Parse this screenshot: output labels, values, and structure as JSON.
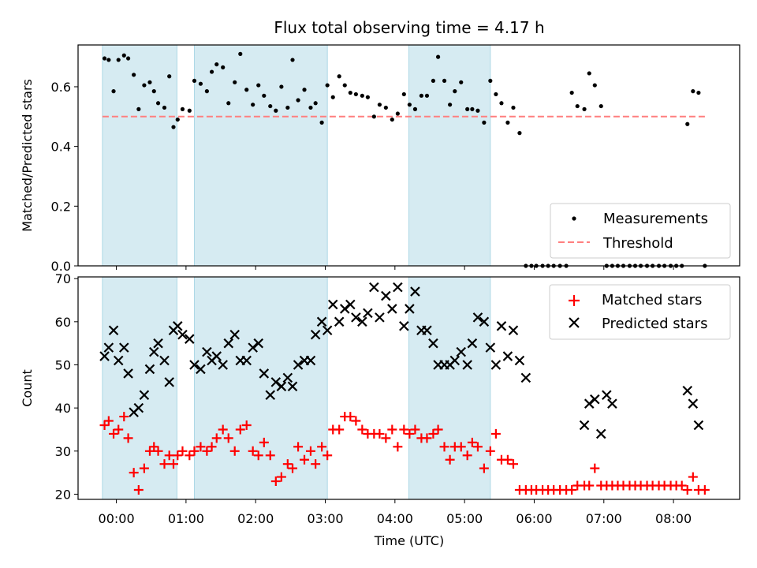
{
  "chart_data": [
    {
      "type": "scatter",
      "title": "Flux total observing time = 4.17 h",
      "xlabel": "",
      "ylabel": "Matched/Predicted stars",
      "xlim": [
        -0.55,
        8.95
      ],
      "ylim": [
        0.0,
        0.74
      ],
      "yticks": [
        "0.0",
        "0.2",
        "0.4",
        "0.6"
      ],
      "ytick_values": [
        0.0,
        0.2,
        0.4,
        0.6
      ],
      "grid": false,
      "legend_position": "lower-right",
      "legend": [
        {
          "label": "Measurements"
        },
        {
          "label": "Threshold"
        }
      ],
      "threshold": {
        "value": 0.5,
        "x_range": [
          -0.2,
          8.48
        ],
        "color": "#ff7f7f"
      },
      "shaded_spans": [
        [
          -0.2,
          0.87
        ],
        [
          1.12,
          3.03
        ],
        [
          4.2,
          5.37
        ]
      ],
      "shade_color": "#add8e6",
      "series": [
        {
          "name": "Measurements",
          "color": "#000000",
          "marker": "dot",
          "x": [
            -0.17,
            -0.11,
            -0.04,
            0.03,
            0.11,
            0.17,
            0.25,
            0.32,
            0.4,
            0.48,
            0.54,
            0.6,
            0.69,
            0.76,
            0.82,
            0.88,
            0.95,
            1.05,
            1.12,
            1.21,
            1.3,
            1.37,
            1.44,
            1.53,
            1.61,
            1.7,
            1.78,
            1.87,
            1.96,
            2.04,
            2.12,
            2.21,
            2.29,
            2.37,
            2.46,
            2.53,
            2.61,
            2.7,
            2.79,
            2.86,
            2.95,
            3.03,
            3.11,
            3.2,
            3.28,
            3.36,
            3.44,
            3.53,
            3.61,
            3.7,
            3.78,
            3.87,
            3.96,
            4.04,
            4.13,
            4.21,
            4.29,
            4.38,
            4.46,
            4.55,
            4.62,
            4.71,
            4.79,
            4.86,
            4.95,
            5.04,
            5.11,
            5.19,
            5.28,
            5.37,
            5.45,
            5.53,
            5.62,
            5.7,
            5.79,
            5.88,
            5.96,
            6.03,
            6.12,
            6.2,
            6.28,
            6.37,
            6.46,
            6.54,
            6.62,
            6.72,
            6.79,
            6.87,
            6.96,
            7.04,
            7.12,
            7.2,
            7.28,
            7.37,
            7.45,
            7.53,
            7.62,
            7.7,
            7.79,
            7.87,
            7.96,
            8.04,
            8.12,
            8.2,
            8.28,
            8.36,
            8.45
          ],
          "y": [
            0.695,
            0.69,
            0.585,
            0.69,
            0.705,
            0.695,
            0.64,
            0.525,
            0.605,
            0.615,
            0.585,
            0.545,
            0.53,
            0.635,
            0.465,
            0.49,
            0.525,
            0.52,
            0.62,
            0.61,
            0.585,
            0.65,
            0.675,
            0.665,
            0.545,
            0.615,
            0.71,
            0.59,
            0.54,
            0.605,
            0.57,
            0.535,
            0.52,
            0.6,
            0.53,
            0.69,
            0.555,
            0.59,
            0.53,
            0.545,
            0.48,
            0.605,
            0.565,
            0.635,
            0.605,
            0.58,
            0.575,
            0.57,
            0.565,
            0.5,
            0.54,
            0.53,
            0.49,
            0.51,
            0.575,
            0.54,
            0.525,
            0.57,
            0.57,
            0.62,
            0.7,
            0.62,
            0.54,
            0.585,
            0.615,
            0.525,
            0.525,
            0.52,
            0.48,
            0.62,
            0.575,
            0.545,
            0.48,
            0.53,
            0.445,
            0.0,
            0.0,
            0.0,
            0.0,
            0.0,
            0.0,
            0.0,
            0.0,
            0.58,
            0.535,
            0.525,
            0.645,
            0.605,
            0.535,
            0.0,
            0.0,
            0.0,
            0.0,
            0.0,
            0.0,
            0.0,
            0.0,
            0.0,
            0.0,
            0.0,
            0.0,
            0.0,
            0.0,
            0.475,
            0.585,
            0.58,
            0.0
          ]
        }
      ]
    },
    {
      "type": "scatter",
      "title": "",
      "xlabel": "Time (UTC)",
      "ylabel": "Count",
      "xlim": [
        -0.55,
        8.95
      ],
      "ylim": [
        18.8,
        70.4
      ],
      "yticks": [
        "20",
        "30",
        "40",
        "50",
        "60",
        "70"
      ],
      "ytick_values": [
        20,
        30,
        40,
        50,
        60,
        70
      ],
      "xticks": [
        "00:00",
        "01:00",
        "02:00",
        "03:00",
        "04:00",
        "05:00",
        "06:00",
        "07:00",
        "08:00"
      ],
      "xtick_values": [
        0,
        1,
        2,
        3,
        4,
        5,
        6,
        7,
        8
      ],
      "grid": false,
      "legend_position": "upper-right",
      "legend": [
        {
          "label": "Matched stars"
        },
        {
          "label": "Predicted stars"
        }
      ],
      "shaded_spans": [
        [
          -0.2,
          0.87
        ],
        [
          1.12,
          3.03
        ],
        [
          4.2,
          5.37
        ]
      ],
      "shade_color": "#add8e6",
      "series": [
        {
          "name": "Matched stars",
          "color": "#ff0000",
          "marker": "plus",
          "x": [
            -0.17,
            -0.11,
            -0.04,
            0.03,
            0.11,
            0.17,
            0.25,
            0.32,
            0.4,
            0.48,
            0.54,
            0.6,
            0.69,
            0.76,
            0.82,
            0.88,
            0.95,
            1.05,
            1.12,
            1.21,
            1.3,
            1.37,
            1.44,
            1.53,
            1.61,
            1.7,
            1.78,
            1.87,
            1.96,
            2.04,
            2.12,
            2.21,
            2.29,
            2.37,
            2.46,
            2.53,
            2.61,
            2.7,
            2.79,
            2.86,
            2.95,
            3.03,
            3.11,
            3.2,
            3.28,
            3.36,
            3.44,
            3.53,
            3.61,
            3.7,
            3.78,
            3.87,
            3.96,
            4.04,
            4.13,
            4.21,
            4.29,
            4.38,
            4.46,
            4.55,
            4.62,
            4.71,
            4.79,
            4.86,
            4.95,
            5.04,
            5.11,
            5.19,
            5.28,
            5.37,
            5.45,
            5.53,
            5.62,
            5.7,
            5.79,
            5.88,
            5.96,
            6.03,
            6.12,
            6.2,
            6.28,
            6.37,
            6.46,
            6.54,
            6.62,
            6.72,
            6.79,
            6.87,
            6.96,
            7.04,
            7.12,
            7.2,
            7.28,
            7.37,
            7.45,
            7.53,
            7.62,
            7.7,
            7.79,
            7.87,
            7.96,
            8.04,
            8.12,
            8.2,
            8.28,
            8.36,
            8.45
          ],
          "y": [
            36,
            37,
            34,
            35,
            38,
            33,
            25,
            21,
            26,
            30,
            31,
            30,
            27,
            29,
            27,
            29,
            30,
            29,
            30,
            31,
            30,
            31,
            33,
            35,
            33,
            30,
            35,
            36,
            30,
            29,
            32,
            29,
            23,
            24,
            27,
            26,
            31,
            28,
            30,
            27,
            31,
            29,
            35,
            35,
            38,
            38,
            37,
            35,
            34,
            34,
            34,
            33,
            35,
            31,
            35,
            34,
            35,
            33,
            33,
            34,
            35,
            31,
            28,
            31,
            31,
            29,
            32,
            31,
            26,
            30,
            34,
            28,
            28,
            27,
            21,
            21,
            21,
            21,
            21,
            21,
            21,
            21,
            21,
            21,
            22,
            22,
            22,
            26,
            22,
            22,
            22,
            22,
            22,
            22,
            22,
            22,
            22,
            22,
            22,
            22,
            22,
            22,
            22,
            21,
            24,
            21,
            21
          ]
        },
        {
          "name": "Predicted stars",
          "color": "#000000",
          "marker": "x",
          "x": [
            -0.17,
            -0.11,
            -0.04,
            0.03,
            0.11,
            0.17,
            0.25,
            0.32,
            0.4,
            0.48,
            0.54,
            0.6,
            0.69,
            0.76,
            0.82,
            0.88,
            0.95,
            1.05,
            1.12,
            1.21,
            1.3,
            1.37,
            1.44,
            1.53,
            1.61,
            1.7,
            1.78,
            1.87,
            1.96,
            2.04,
            2.12,
            2.21,
            2.29,
            2.37,
            2.46,
            2.53,
            2.61,
            2.7,
            2.79,
            2.86,
            2.95,
            3.03,
            3.11,
            3.2,
            3.28,
            3.36,
            3.44,
            3.53,
            3.61,
            3.7,
            3.78,
            3.87,
            3.96,
            4.04,
            4.13,
            4.21,
            4.29,
            4.38,
            4.46,
            4.55,
            4.62,
            4.71,
            4.79,
            4.86,
            4.95,
            5.04,
            5.11,
            5.19,
            5.28,
            5.37,
            5.45,
            5.53,
            5.62,
            5.7,
            5.79,
            5.88,
            6.72,
            6.79,
            6.87,
            6.96,
            7.04,
            7.12,
            8.2,
            8.28,
            8.36
          ],
          "y": [
            52,
            54,
            58,
            51,
            54,
            48,
            39,
            40,
            43,
            49,
            53,
            55,
            51,
            46,
            58,
            59,
            57,
            56,
            50,
            49,
            53,
            51,
            52,
            50,
            55,
            57,
            51,
            51,
            54,
            55,
            48,
            43,
            46,
            45,
            47,
            45,
            50,
            51,
            51,
            57,
            60,
            58,
            64,
            60,
            63,
            64,
            61,
            60,
            62,
            68,
            61,
            66,
            63,
            68,
            59,
            63,
            67,
            58,
            58,
            55,
            50,
            50,
            50,
            51,
            53,
            50,
            55,
            61,
            60,
            54,
            50,
            59,
            52,
            58,
            51,
            47,
            36,
            41,
            42,
            34,
            43,
            41,
            44,
            41,
            36
          ]
        }
      ]
    }
  ]
}
